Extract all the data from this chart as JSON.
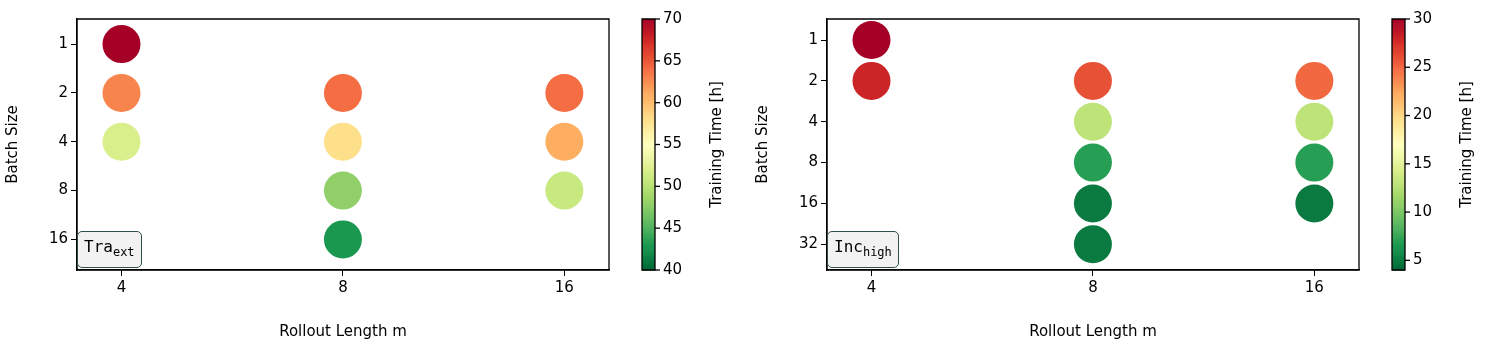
{
  "chart_data": [
    {
      "type": "scatter",
      "xlabel": "Rollout Length m",
      "ylabel": "Batch Size",
      "clabel": "Training Time [h]",
      "log": "xy",
      "marker": "circle",
      "x": [
        4,
        4,
        4,
        8,
        8,
        8,
        8,
        16,
        16,
        16
      ],
      "values": [
        1,
        2,
        4,
        2,
        4,
        8,
        16,
        2,
        4,
        8
      ],
      "cvalues": [
        70,
        63,
        52,
        64,
        58,
        48,
        43,
        64,
        61,
        51
      ],
      "xlim": [
        3.48,
        18.4
      ],
      "xticks": [
        4,
        8,
        16
      ],
      "ylim": [
        24.7,
        0.71
      ],
      "yticks": [
        1,
        2,
        4,
        8,
        16
      ],
      "clim": [
        40,
        70
      ],
      "cticks": [
        40,
        45,
        50,
        55,
        60,
        65,
        70
      ],
      "annotations": [
        "Tra$_{ext}$"
      ]
    },
    {
      "type": "scatter",
      "xlabel": "Rollout Length m",
      "ylabel": "Batch Size",
      "clabel": "Training Time [h]",
      "log": "xy",
      "marker": "circle",
      "x": [
        4,
        4,
        8,
        8,
        8,
        8,
        8,
        16,
        16,
        16,
        16
      ],
      "values": [
        1,
        2,
        2,
        4,
        8,
        16,
        32,
        2,
        4,
        8,
        16
      ],
      "cvalues": [
        30,
        28,
        26,
        13,
        7,
        5,
        5,
        25,
        13,
        7,
        5
      ],
      "xlim": [
        3.48,
        18.4
      ],
      "xticks": [
        4,
        8,
        16
      ],
      "ylim": [
        49.5,
        0.7
      ],
      "yticks": [
        1,
        2,
        4,
        8,
        16,
        32
      ],
      "clim": [
        4,
        30
      ],
      "cticks": [
        5,
        10,
        15,
        20,
        25,
        30
      ],
      "annotations": [
        "Inc$_{high}$"
      ]
    }
  ]
}
